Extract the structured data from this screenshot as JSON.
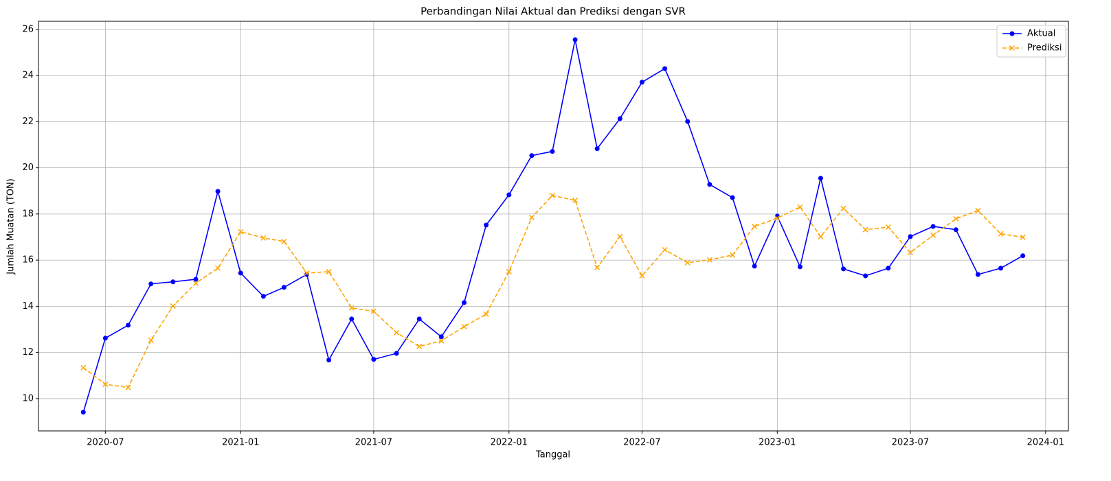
{
  "chart_data": {
    "type": "line",
    "title": "Perbandingan Nilai Aktual dan Prediksi dengan SVR",
    "xlabel": "Tanggal",
    "ylabel": "Jumlah Muatan (TON)",
    "x": [
      "2020-06",
      "2020-07",
      "2020-08",
      "2020-09",
      "2020-10",
      "2020-11",
      "2020-12",
      "2021-01",
      "2021-02",
      "2021-03",
      "2021-04",
      "2021-05",
      "2021-06",
      "2021-07",
      "2021-08",
      "2021-09",
      "2021-10",
      "2021-11",
      "2021-12",
      "2022-01",
      "2022-02",
      "2022-03",
      "2022-04",
      "2022-05",
      "2022-06",
      "2022-07",
      "2022-08",
      "2022-09",
      "2022-10",
      "2022-11",
      "2022-12",
      "2023-01",
      "2023-02",
      "2023-03",
      "2023-04",
      "2023-05",
      "2023-06",
      "2023-07",
      "2023-08",
      "2023-09",
      "2023-10",
      "2023-11",
      "2023-12"
    ],
    "series": [
      {
        "name": "Aktual",
        "color": "#0000ff",
        "linestyle": "solid",
        "marker": "o",
        "values": [
          9.41,
          12.62,
          13.18,
          14.97,
          15.06,
          15.17,
          18.98,
          15.44,
          14.43,
          14.82,
          15.38,
          11.67,
          13.45,
          11.7,
          11.96,
          13.45,
          12.68,
          14.16,
          17.52,
          18.83,
          20.53,
          20.71,
          25.55,
          20.83,
          22.13,
          23.71,
          24.3,
          22.01,
          19.28,
          18.71,
          15.74,
          17.91,
          15.71,
          19.55,
          15.62,
          15.32,
          15.65,
          17.02,
          17.46,
          17.32,
          15.38,
          15.65,
          16.19
        ]
      },
      {
        "name": "Prediksi",
        "color": "#ffa500",
        "linestyle": "dashed",
        "marker": "x",
        "values": [
          11.34,
          10.62,
          10.48,
          12.53,
          14.01,
          15.0,
          15.65,
          17.23,
          16.96,
          16.81,
          15.44,
          15.5,
          13.93,
          13.78,
          12.86,
          12.26,
          12.5,
          13.12,
          13.66,
          15.5,
          17.85,
          18.8,
          18.59,
          15.68,
          17.02,
          15.32,
          16.45,
          15.89,
          16.01,
          16.22,
          17.46,
          17.82,
          18.3,
          17.02,
          18.24,
          17.32,
          17.43,
          16.33,
          17.08,
          17.79,
          18.15,
          17.14,
          16.99
        ]
      }
    ],
    "xlim": [
      "2020-04",
      "2024-02"
    ],
    "xticks": [
      "2020-07",
      "2021-01",
      "2021-07",
      "2022-01",
      "2022-07",
      "2023-01",
      "2023-07",
      "2024-01"
    ],
    "ylim": [
      8.6,
      26.35
    ],
    "yticks": [
      10,
      12,
      14,
      16,
      18,
      20,
      22,
      24,
      26
    ],
    "grid": true,
    "legend": "upper right"
  }
}
